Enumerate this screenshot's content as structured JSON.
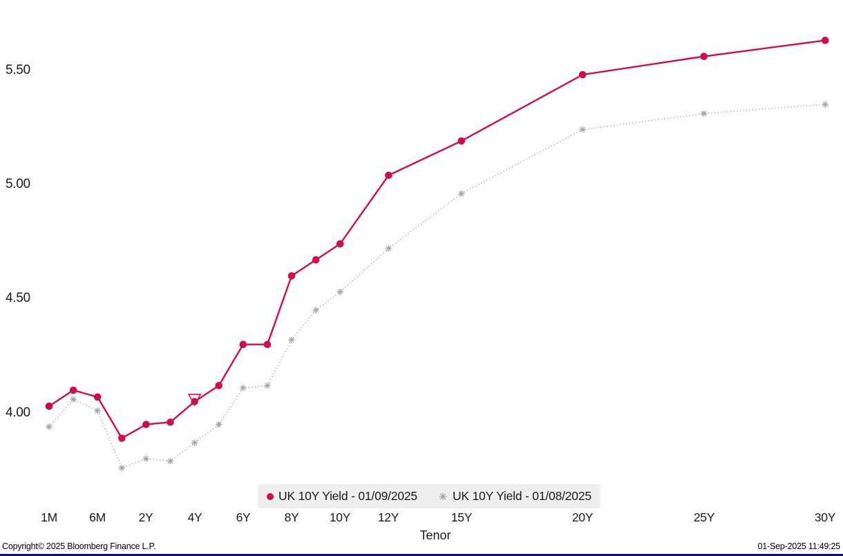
{
  "chart_data": {
    "type": "line",
    "title": "",
    "xlabel": "Tenor",
    "ylabel": "",
    "grid": false,
    "legend_position": "bottom-center",
    "ylim": [
      3.68,
      5.78
    ],
    "yticks": [
      4.0,
      4.5,
      5.0,
      5.5
    ],
    "ytick_labels": [
      "4.00",
      "4.50",
      "5.00",
      "5.50"
    ],
    "categories": [
      "1M",
      "3M",
      "6M",
      "1Y",
      "2Y",
      "3Y",
      "4Y",
      "5Y",
      "6Y",
      "7Y",
      "8Y",
      "9Y",
      "10Y",
      "12Y",
      "15Y",
      "20Y",
      "25Y",
      "30Y"
    ],
    "xtick_labels": [
      "1M",
      "6M",
      "2Y",
      "4Y",
      "6Y",
      "8Y",
      "10Y",
      "12Y",
      "15Y",
      "20Y",
      "25Y",
      "30Y"
    ],
    "xtick_category_indices": [
      0,
      2,
      4,
      6,
      8,
      10,
      12,
      13,
      14,
      15,
      16,
      17
    ],
    "series": [
      {
        "name": "UK 10Y Yield - 01/09/2025",
        "color": "#d40b4b",
        "line_style": "solid",
        "marker": "circle",
        "values": [
          4.03,
          4.1,
          4.07,
          3.89,
          3.95,
          3.96,
          4.05,
          4.12,
          4.3,
          4.3,
          4.6,
          4.67,
          4.74,
          5.04,
          5.19,
          5.48,
          5.56,
          5.63
        ]
      },
      {
        "name": "UK 10Y Yield - 01/08/2025",
        "color": "#a9a098",
        "line_style": "dotted",
        "marker": "asterisk",
        "values": [
          3.94,
          4.06,
          4.01,
          3.76,
          3.8,
          3.79,
          3.87,
          3.95,
          4.11,
          4.12,
          4.32,
          4.45,
          4.53,
          4.72,
          4.96,
          5.24,
          5.31,
          5.35
        ]
      }
    ],
    "annotation": {
      "marker": "open-triangle-down",
      "category": "4Y",
      "series_index": 0,
      "color": "#d40b4b"
    }
  },
  "footer": {
    "copyright": "Copyright© 2025 Bloomberg Finance L.P.",
    "timestamp": "01-Sep-2025 11:49:25"
  },
  "colors": {
    "series_red": "#d40b4b",
    "series_gray": "#a9a098",
    "legend_background": "#efefef",
    "text": "#1a1a1a",
    "bottom_bar": "#0e0e72"
  }
}
